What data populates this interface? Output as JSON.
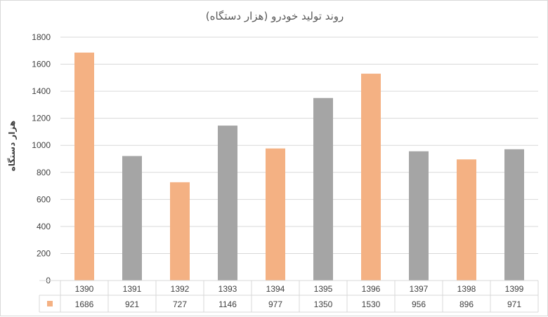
{
  "chart_data": {
    "type": "bar",
    "title": "روند تولید خودرو (هزار دستگاه)",
    "ylabel": "هزار دستگاه",
    "xlabel": "",
    "ylim": [
      0,
      1800
    ],
    "yticks": [
      0,
      200,
      400,
      600,
      800,
      1000,
      1200,
      1400,
      1600,
      1800
    ],
    "grid": true,
    "legend": "data-table",
    "categories": [
      "1390",
      "1391",
      "1392",
      "1393",
      "1394",
      "1395",
      "1396",
      "1397",
      "1398",
      "1399"
    ],
    "values": [
      1686,
      921,
      727,
      1146,
      977,
      1350,
      1530,
      956,
      896,
      971
    ],
    "colors": {
      "orange": "#F4B183",
      "gray": "#A5A5A5",
      "grid": "#D9D9D9"
    },
    "bar_colors": [
      "orange",
      "gray",
      "orange",
      "gray",
      "orange",
      "gray",
      "orange",
      "gray",
      "orange",
      "gray"
    ],
    "legend_key_color": "#F4B183"
  }
}
